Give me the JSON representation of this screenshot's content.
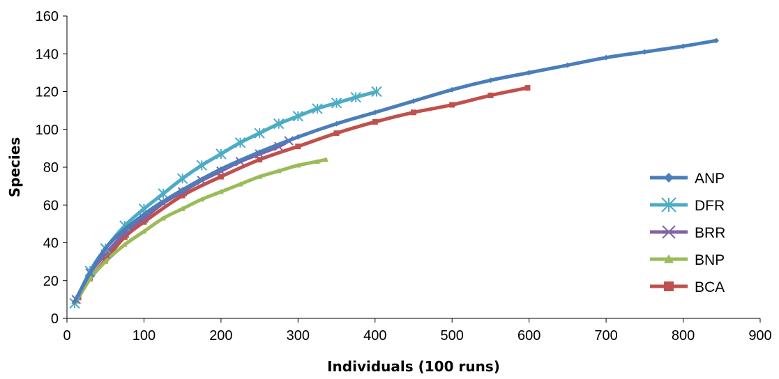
{
  "chart_data": {
    "type": "line",
    "title": "",
    "xlabel": "Individuals (100 runs)",
    "ylabel": "Species",
    "xlim": [
      0,
      900
    ],
    "ylim": [
      0,
      160
    ],
    "x_ticks": [
      "0",
      "100",
      "200",
      "300",
      "400",
      "500",
      "600",
      "700",
      "800",
      "900"
    ],
    "y_ticks": [
      "0",
      "20",
      "40",
      "60",
      "80",
      "100",
      "120",
      "140",
      "160"
    ],
    "grid": false,
    "legend_position": "right",
    "series": [
      {
        "name": "ANP",
        "color": "#4a7ebb",
        "marker": "diamond",
        "x": [
          10,
          50,
          100,
          150,
          200,
          250,
          300,
          350,
          400,
          450,
          500,
          550,
          600,
          650,
          700,
          750,
          800,
          843
        ],
        "y": [
          9,
          37,
          55,
          68,
          79,
          88,
          96,
          103,
          109,
          115,
          121,
          126,
          130,
          134,
          138,
          141,
          144,
          147
        ]
      },
      {
        "name": "DFR",
        "color": "#4bacc6",
        "marker": "asterisk",
        "x": [
          10,
          30,
          50,
          75,
          100,
          125,
          150,
          175,
          200,
          225,
          250,
          275,
          300,
          325,
          350,
          375,
          402
        ],
        "y": [
          8,
          25,
          37,
          49,
          58,
          66,
          74,
          81,
          87,
          93,
          98,
          103,
          107,
          111,
          114,
          117,
          120
        ]
      },
      {
        "name": "BRR",
        "color": "#8064a2",
        "marker": "x",
        "x": [
          12,
          30,
          50,
          75,
          100,
          125,
          150,
          175,
          200,
          225,
          250,
          275,
          288
        ],
        "y": [
          10,
          24,
          34,
          45,
          53,
          61,
          67,
          73,
          78,
          83,
          87,
          91,
          94
        ]
      },
      {
        "name": "BNP",
        "color": "#9bbb59",
        "marker": "triangle",
        "x": [
          12,
          30,
          50,
          75,
          100,
          125,
          150,
          175,
          200,
          225,
          250,
          275,
          300,
          325,
          336
        ],
        "y": [
          9,
          21,
          30,
          39,
          46,
          53,
          58,
          63,
          67,
          71,
          75,
          78,
          81,
          83,
          84
        ]
      },
      {
        "name": "BCA",
        "color": "#c0504d",
        "marker": "square",
        "x": [
          15,
          30,
          50,
          75,
          100,
          150,
          200,
          250,
          300,
          350,
          400,
          450,
          500,
          550,
          598
        ],
        "y": [
          11,
          21,
          31,
          43,
          51,
          65,
          75,
          84,
          91,
          98,
          104,
          109,
          113,
          118,
          122
        ]
      }
    ]
  }
}
